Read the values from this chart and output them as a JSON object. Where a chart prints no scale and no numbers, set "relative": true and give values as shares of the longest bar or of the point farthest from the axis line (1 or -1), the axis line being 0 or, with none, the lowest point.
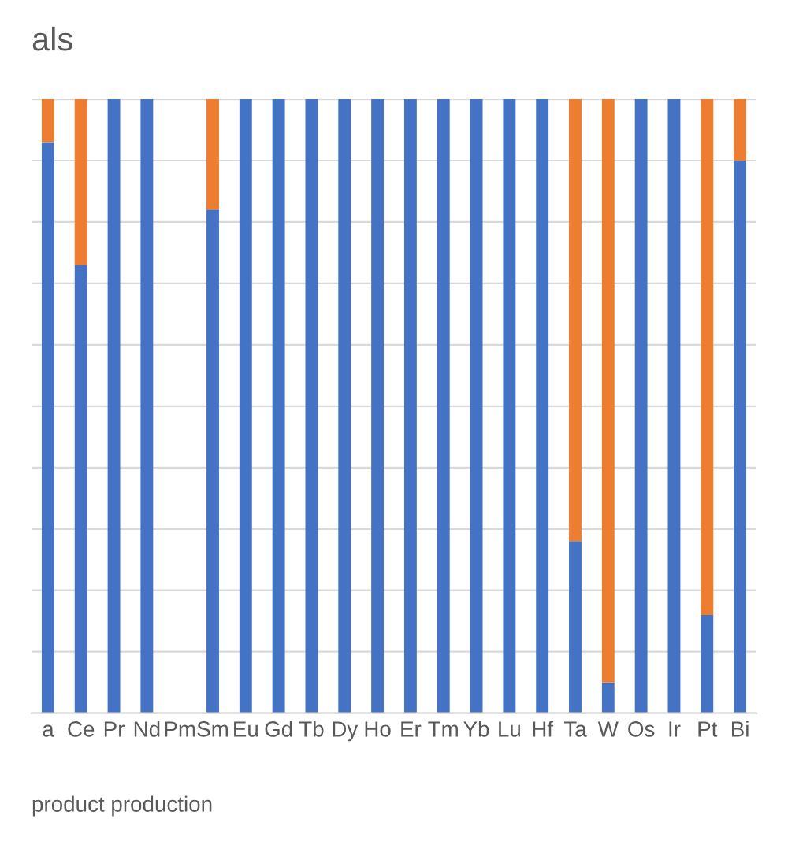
{
  "chart_data": {
    "type": "bar",
    "title": "als",
    "stacked": true,
    "relative": true,
    "grid": "y",
    "categories": [
      "a",
      "Ce",
      "Pr",
      "Nd",
      "Pm",
      "Sm",
      "Eu",
      "Gd",
      "Tb",
      "Dy",
      "Ho",
      "Er",
      "Tm",
      "Yb",
      "Lu",
      "Hf",
      "Ta",
      "W",
      "Os",
      "Ir",
      "Pt",
      "Bi"
    ],
    "series": [
      {
        "color": "#4472c4",
        "values": [
          0.93,
          0.73,
          1,
          1,
          null,
          0.82,
          1,
          1,
          1,
          1,
          1,
          1,
          1,
          1,
          1,
          1,
          0.28,
          0.05,
          1,
          1,
          0.16,
          0.9
        ]
      },
      {
        "color": "#ed7d31",
        "values": [
          0.07,
          0.27,
          0,
          0,
          null,
          0.18,
          0,
          0,
          0,
          0,
          0,
          0,
          0,
          0,
          0,
          0,
          0.72,
          0.95,
          0,
          0,
          0.84,
          0.1
        ]
      }
    ],
    "annotations": [
      "product production"
    ]
  }
}
